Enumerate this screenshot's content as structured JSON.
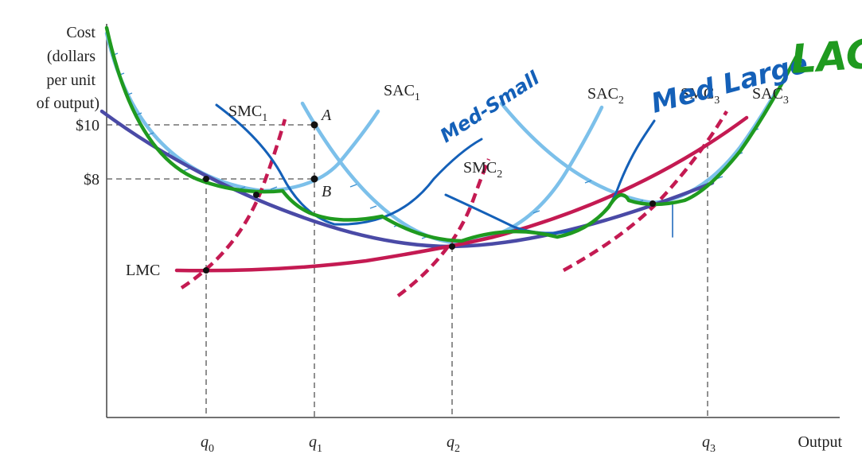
{
  "y_axis_label_lines": [
    "Cost",
    "(dollars",
    "per unit",
    "of output)"
  ],
  "x_axis_label": "Output",
  "y_ticks": [
    "$10",
    "$8"
  ],
  "x_ticks": [
    {
      "base": "q",
      "sub": "0"
    },
    {
      "base": "q",
      "sub": "1"
    },
    {
      "base": "q",
      "sub": "2"
    },
    {
      "base": "q",
      "sub": "3"
    }
  ],
  "curves": {
    "lmc": "LMC",
    "smc1": {
      "base": "SMC",
      "sub": "1"
    },
    "smc2": {
      "base": "SMC",
      "sub": "2"
    },
    "smc3": {
      "base": "SMC",
      "sub": "3"
    },
    "sac1": {
      "base": "SAC",
      "sub": "1"
    },
    "sac2": {
      "base": "SAC",
      "sub": "2"
    },
    "sac3": {
      "base": "SAC",
      "sub": "3"
    }
  },
  "points": {
    "a": "A",
    "b": "B"
  },
  "annotations": {
    "med_small": "Med-Small",
    "med_large": "Med Large",
    "lac": "LAC"
  },
  "colors": {
    "sac": "#7cc0ea",
    "lac_purple": "#4a4aa6",
    "lmc_red": "#c41a52",
    "smc_red": "#c41a52",
    "ink_blue": "#1460b8",
    "ink_green": "#1f9a1f",
    "axis": "#444444"
  }
}
